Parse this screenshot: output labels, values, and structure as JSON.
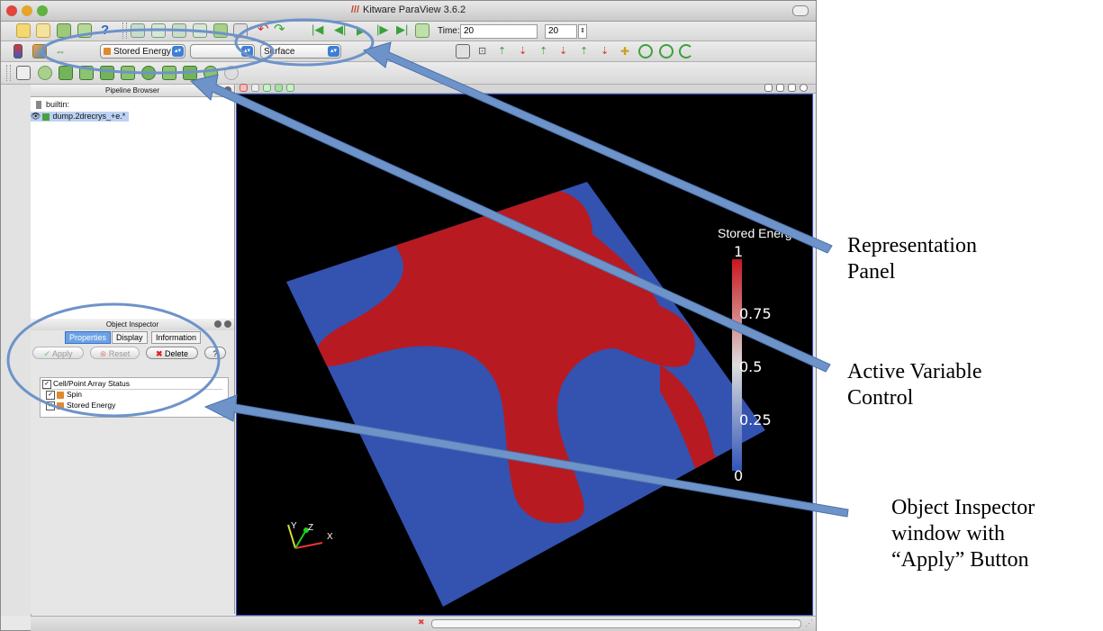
{
  "window": {
    "title": "Kitware ParaView 3.6.2"
  },
  "toolbar": {
    "time_label": "Time:",
    "time_value": "20",
    "timestep_value": "20",
    "active_variable": "Stored Energy",
    "component_value": "",
    "representation": "Surface"
  },
  "pipeline_browser": {
    "title": "Pipeline Browser",
    "items": [
      {
        "label": "builtin:"
      },
      {
        "label": "dump.2drecrys_+e.*"
      }
    ]
  },
  "object_inspector": {
    "title": "Object Inspector",
    "tabs": [
      {
        "label": "Properties"
      },
      {
        "label": "Display"
      },
      {
        "label": "Information"
      }
    ],
    "buttons": {
      "apply": "Apply",
      "reset": "Reset",
      "delete": "Delete"
    },
    "array_header": "Cell/Point Array Status",
    "arrays": [
      {
        "label": "Spin"
      },
      {
        "label": "Stored Energy"
      }
    ]
  },
  "colorbar": {
    "title": "Stored Energ",
    "ticks": [
      "1",
      "0.75",
      "0.5",
      "0.25",
      "0"
    ],
    "top_color": "#c8161d",
    "mid_color": "#dcdcdc",
    "bottom_color": "#3155b8"
  },
  "axes": {
    "x": "X",
    "y": "Y",
    "z": "Z"
  },
  "annotations": {
    "representation": [
      "Representation",
      "Panel"
    ],
    "active_variable": [
      "Active Variable",
      "Control"
    ],
    "object_inspector": [
      "Object Inspector",
      "window with",
      "“Apply” Button"
    ]
  },
  "colors": {
    "arrow": "#6d93c9",
    "arrow_edge": "#4a72ae",
    "square_blue": "#3452b0",
    "square_red": "#b81a22",
    "background": "#000000"
  }
}
